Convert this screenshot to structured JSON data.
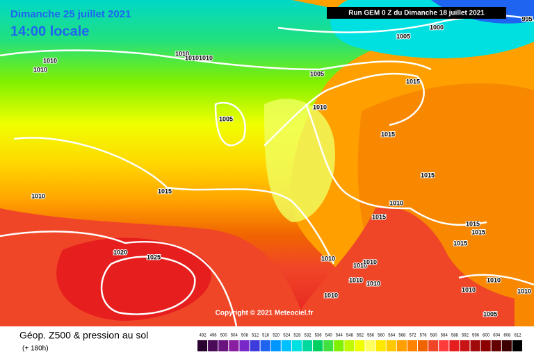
{
  "header": {
    "date": "Dimanche 25 juillet 2021",
    "time": "14:00 locale",
    "run": "Run GEM 0 Z du Dimanche 18 juillet 2021"
  },
  "isobar_labels": [
    "995",
    "1000",
    "1005",
    "1010",
    "1010",
    "1010",
    "1010",
    "1010",
    "1005",
    "1010",
    "1005",
    "1015",
    "1015",
    "1015",
    "1010",
    "1015",
    "1015",
    "1010",
    "1020",
    "1025",
    "1015",
    "1015",
    "1015",
    "1010",
    "1010",
    "1010",
    "1010",
    "1010",
    "1010",
    "1010",
    "1010",
    "1005",
    "1010"
  ],
  "copyright": "Copyright © 2021 Meteociel.fr",
  "legend": {
    "title": "Géop. Z500 & pression au sol",
    "subtitle": "(+ 180h)",
    "levels": [
      492,
      496,
      500,
      504,
      508,
      512,
      516,
      520,
      524,
      528,
      532,
      536,
      540,
      544,
      548,
      552,
      556,
      560,
      564,
      568,
      572,
      576,
      580,
      584,
      588,
      592,
      596,
      600,
      604,
      608,
      612
    ],
    "colors": [
      "#2a0030",
      "#4b0a5a",
      "#6a1480",
      "#8a1ea0",
      "#7828c8",
      "#3c3cdc",
      "#1e64f0",
      "#0096ff",
      "#00c0ff",
      "#00e0e0",
      "#00d8a0",
      "#00d060",
      "#40e040",
      "#80f000",
      "#c0f800",
      "#f0ff00",
      "#ffff60",
      "#ffe800",
      "#ffc800",
      "#ffa000",
      "#ff8200",
      "#f06400",
      "#f04628",
      "#ff3c3c",
      "#e61e1e",
      "#c81414",
      "#a00a0a",
      "#8c0000",
      "#640000",
      "#3c0000",
      "#000000"
    ]
  }
}
